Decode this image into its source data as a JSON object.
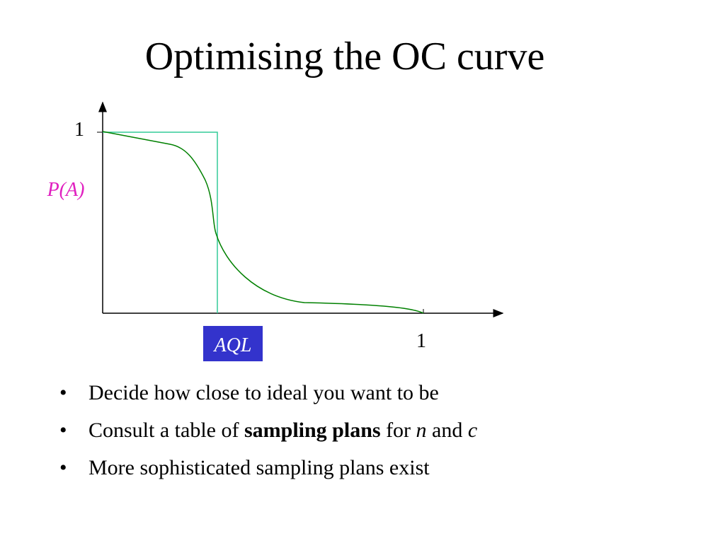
{
  "title": "Optimising the OC curve",
  "diagram": {
    "y_top_label": "1",
    "y_axis_label": "P(A)",
    "aql_label": "AQL",
    "x_right_label": "1"
  },
  "bullets": [
    [
      {
        "text": "Decide how close to ideal you want to be"
      }
    ],
    [
      {
        "text": "Consult a table of "
      },
      {
        "text": "sampling plans",
        "bold": true
      },
      {
        "text": " for "
      },
      {
        "text": "n",
        "italic": true
      },
      {
        "text": " and "
      },
      {
        "text": "c",
        "italic": true
      }
    ],
    [
      {
        "text": "More sophisticated sampling plans exist"
      }
    ]
  ]
}
